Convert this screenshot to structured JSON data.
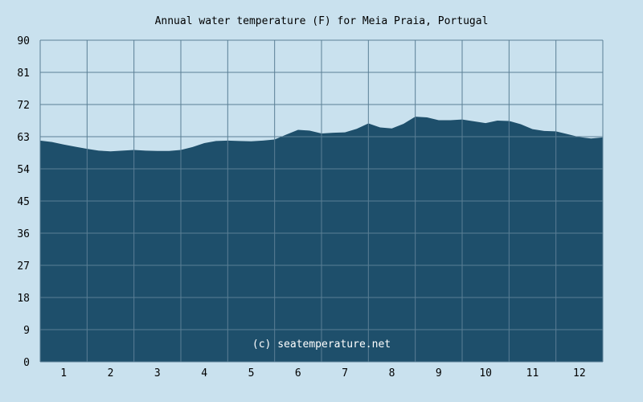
{
  "chart_data": {
    "type": "area",
    "title": "Annual water temperature (F) for Meia Praia, Portugal",
    "xlabel": "",
    "ylabel": "",
    "xlim": [
      0.5,
      12.5
    ],
    "ylim": [
      0,
      90
    ],
    "y_ticks": [
      0,
      9,
      18,
      27,
      36,
      45,
      54,
      63,
      72,
      81,
      90
    ],
    "x_ticks": [
      1,
      2,
      3,
      4,
      5,
      6,
      7,
      8,
      9,
      10,
      11,
      12
    ],
    "grid": true,
    "colors": {
      "fill": "#1e4f6b",
      "background": "#c9e1ee",
      "grid": "#5a7f95"
    },
    "watermark": "(c) seatemperature.net",
    "series": [
      {
        "x": [
          0.5,
          0.75,
          1.0,
          1.25,
          1.5,
          1.75,
          2.0,
          2.25,
          2.5,
          2.75,
          3.0,
          3.25,
          3.5,
          3.75,
          4.0,
          4.25,
          4.5,
          4.75,
          5.0,
          5.25,
          5.5,
          5.75,
          6.0,
          6.25,
          6.5,
          6.75,
          7.0,
          7.25,
          7.5,
          7.75,
          8.0,
          8.25,
          8.5,
          8.75,
          9.0,
          9.25,
          9.5,
          9.75,
          10.0,
          10.25,
          10.5,
          10.75,
          11.0,
          11.25,
          11.5,
          11.75,
          12.0,
          12.25,
          12.5
        ],
        "values": [
          61.9,
          61.5,
          60.8,
          60.2,
          59.6,
          59.1,
          58.9,
          59.1,
          59.3,
          59.1,
          59.0,
          59.0,
          59.3,
          60.1,
          61.2,
          61.8,
          61.9,
          61.8,
          61.7,
          61.9,
          62.2,
          63.6,
          64.9,
          64.7,
          63.9,
          64.1,
          64.2,
          65.2,
          66.7,
          65.6,
          65.3,
          66.6,
          68.6,
          68.4,
          67.6,
          67.6,
          67.8,
          67.3,
          66.8,
          67.5,
          67.4,
          66.5,
          65.1,
          64.6,
          64.5,
          63.7,
          62.9,
          62.5,
          62.8
        ]
      }
    ]
  }
}
